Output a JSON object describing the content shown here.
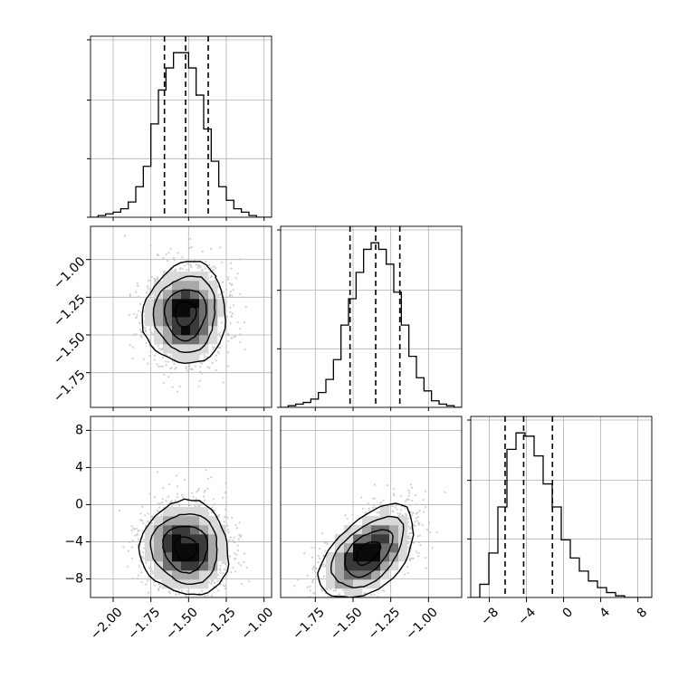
{
  "colors": {
    "line": "#000000",
    "grid": "#b0b0b0",
    "scatter": "#c4c4c4",
    "bins": [
      "#ffffff",
      "#d9d9d9",
      "#a8a8a8",
      "#6e6e6e",
      "#3a3a3a",
      "#0a0a0a"
    ]
  },
  "chart_data": {
    "type": "corner",
    "grid": true,
    "parameters": [
      {
        "range": [
          -2.15,
          -0.95
        ],
        "ticks": [
          -2.0,
          -1.75,
          -1.5,
          -1.25,
          -1.0
        ],
        "tick_labels": [
          "−2.00",
          "−1.75",
          "−1.50",
          "−1.25",
          "−1.00"
        ],
        "quantiles": [
          -1.66,
          -1.52,
          -1.37
        ],
        "mean": -1.52,
        "sd": 0.135
      },
      {
        "range": [
          -1.98,
          -0.78
        ],
        "ticks": [
          -1.75,
          -1.5,
          -1.25,
          -1.0
        ],
        "tick_labels": [
          "−1.75",
          "−1.50",
          "−1.25",
          "−1.00"
        ],
        "quantiles": [
          -1.52,
          -1.35,
          -1.19
        ],
        "mean": -1.35,
        "sd": 0.16
      },
      {
        "range": [
          -10,
          9.5
        ],
        "ticks": [
          -8,
          -4,
          0,
          4,
          8
        ],
        "tick_labels": [
          "−8",
          "−4",
          "0",
          "4",
          "8"
        ],
        "quantiles": [
          -6.3,
          -4.3,
          -1.2
        ],
        "mean": -4.4,
        "sd": 2.6
      }
    ],
    "histograms": [
      {
        "param": 0,
        "bin_edges_range": [
          -2.15,
          -0.95
        ],
        "counts": [
          0,
          1,
          2,
          3,
          5,
          9,
          18,
          30,
          55,
          75,
          88,
          97,
          97,
          88,
          72,
          52,
          33,
          18,
          10,
          5,
          3,
          1,
          0,
          0
        ]
      },
      {
        "param": 1,
        "bin_edges_range": [
          -1.98,
          -0.78
        ],
        "counts": [
          0,
          1,
          2,
          3,
          5,
          9,
          17,
          29,
          50,
          66,
          82,
          96,
          100,
          96,
          87,
          70,
          50,
          31,
          18,
          10,
          4,
          2,
          1,
          0
        ]
      },
      {
        "param": 2,
        "bin_edges_range": [
          -10,
          9.5
        ],
        "counts": [
          0,
          8,
          27,
          55,
          90,
          100,
          98,
          86,
          69,
          55,
          35,
          24,
          16,
          10,
          6,
          3,
          1,
          0,
          0,
          0
        ]
      }
    ],
    "pairs": [
      {
        "x_param": 0,
        "y_param": 1,
        "center": [
          -1.52,
          -1.36
        ],
        "sd": [
          0.13,
          0.16
        ],
        "rho": 0.05,
        "scatter_seed": 11
      },
      {
        "x_param": 0,
        "y_param": 2,
        "center": [
          -1.52,
          -4.7
        ],
        "sd": [
          0.14,
          2.4
        ],
        "rho": -0.05,
        "scatter_seed": 23
      },
      {
        "x_param": 1,
        "y_param": 2,
        "center": [
          -1.4,
          -5.2
        ],
        "sd": [
          0.15,
          2.4
        ],
        "rho": 0.5,
        "scatter_seed": 37
      }
    ],
    "contour_levels_sigma": [
      0.5,
      1.0,
      1.5,
      2.0
    ]
  }
}
